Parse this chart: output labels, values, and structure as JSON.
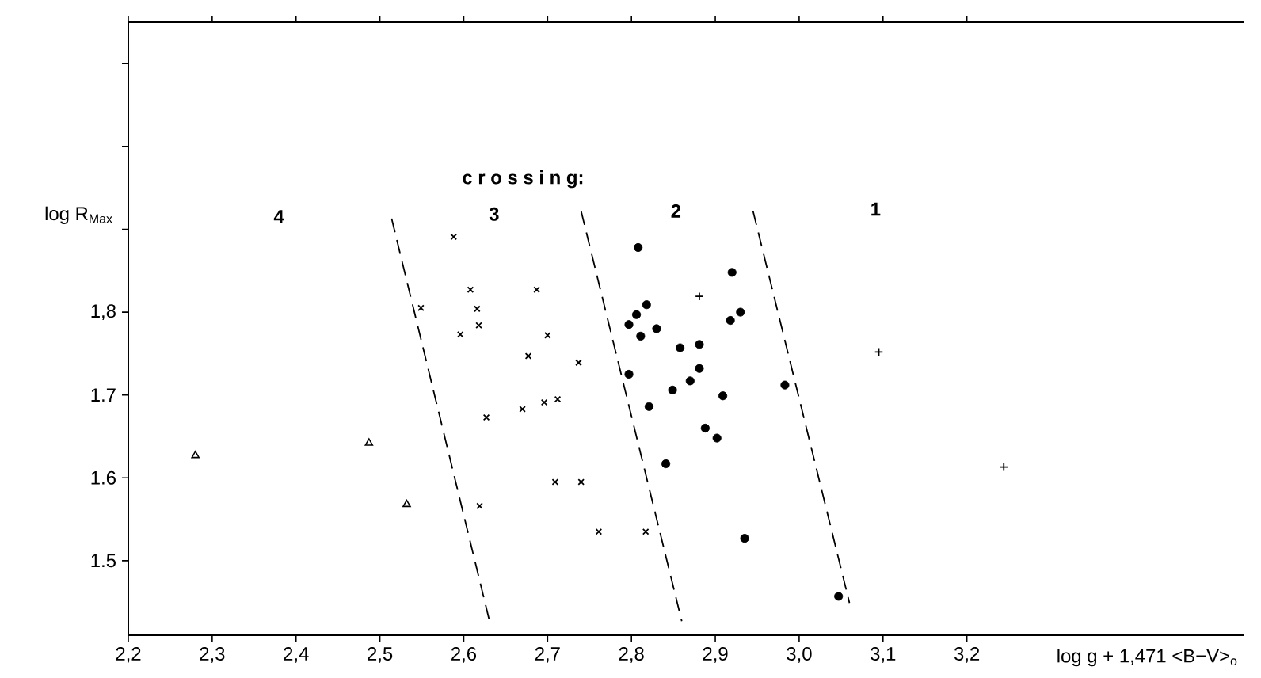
{
  "chart_data": {
    "type": "scatter",
    "xlabel": "log g + 1,471 <B−V>$_{o}$",
    "ylabel": "log R$_{Max}$",
    "xlim": [
      2.2,
      3.53
    ],
    "ylim": [
      1.41,
      2.15
    ],
    "xticks": [
      {
        "value": 2.2,
        "label": "2,2"
      },
      {
        "value": 2.3,
        "label": "2,3"
      },
      {
        "value": 2.4,
        "label": "2,4"
      },
      {
        "value": 2.5,
        "label": "2,5"
      },
      {
        "value": 2.6,
        "label": "2,6"
      },
      {
        "value": 2.7,
        "label": "2,7"
      },
      {
        "value": 2.8,
        "label": "2,8"
      },
      {
        "value": 2.9,
        "label": "2,9"
      },
      {
        "value": 3.0,
        "label": "3,0"
      },
      {
        "value": 3.1,
        "label": "3,1"
      },
      {
        "value": 3.2,
        "label": "3,2"
      }
    ],
    "yticks": [
      1.5,
      1.6,
      1.7,
      {
        "value": 1.8,
        "label": "1,8"
      },
      {
        "value": 1.9,
        "label": null
      },
      {
        "value": 2.0,
        "label": null
      },
      {
        "value": 2.1,
        "label": null
      }
    ],
    "series": [
      {
        "type": "scatter",
        "marker": "triangle",
        "color": "#000000",
        "x": [
          2.28,
          2.487,
          2.532
        ],
        "values": [
          1.627,
          1.642,
          1.568
        ]
      },
      {
        "type": "scatter",
        "marker": "cross",
        "color": "#000000",
        "x": [
          2.588,
          2.608,
          2.687,
          2.549,
          2.616,
          2.618,
          2.596,
          2.7,
          2.677,
          2.737,
          2.627,
          2.67,
          2.696,
          2.712,
          2.709,
          2.74,
          2.619,
          2.761,
          2.817
        ],
        "values": [
          1.891,
          1.827,
          1.827,
          1.805,
          1.804,
          1.784,
          1.773,
          1.772,
          1.747,
          1.739,
          1.673,
          1.683,
          1.691,
          1.695,
          1.595,
          1.595,
          1.566,
          1.535,
          1.535
        ]
      },
      {
        "type": "scatter",
        "marker": "circle",
        "color": "#000000",
        "x": [
          2.808,
          2.92,
          2.818,
          2.806,
          2.797,
          2.811,
          2.83,
          2.93,
          2.918,
          2.858,
          2.881,
          2.881,
          2.87,
          2.849,
          2.797,
          2.909,
          2.983,
          2.821,
          2.888,
          2.902,
          2.841,
          2.935,
          3.047
        ],
        "values": [
          1.878,
          1.848,
          1.809,
          1.797,
          1.785,
          1.771,
          1.78,
          1.8,
          1.79,
          1.757,
          1.761,
          1.732,
          1.717,
          1.706,
          1.725,
          1.699,
          1.712,
          1.686,
          1.66,
          1.648,
          1.617,
          1.527,
          1.457
        ]
      },
      {
        "type": "scatter",
        "marker": "plus",
        "color": "#000000",
        "x": [
          2.881,
          3.095,
          3.244
        ],
        "values": [
          1.819,
          1.752,
          1.613
        ]
      },
      {
        "type": "line",
        "marker": "none",
        "line_style": "dashed",
        "color": "#000000",
        "x": [
          2.514,
          2.631
        ],
        "values": [
          1.913,
          1.426
        ]
      },
      {
        "type": "line",
        "marker": "none",
        "line_style": "dashed",
        "color": "#000000",
        "x": [
          2.74,
          2.86
        ],
        "values": [
          1.922,
          1.427
        ]
      },
      {
        "type": "line",
        "marker": "none",
        "line_style": "dashed",
        "color": "#000000",
        "x": [
          2.945,
          3.06
        ],
        "values": [
          1.922,
          1.449
        ]
      }
    ],
    "annotations": [
      "c r o s s i n g:",
      "4",
      "3",
      "2",
      "1"
    ]
  }
}
